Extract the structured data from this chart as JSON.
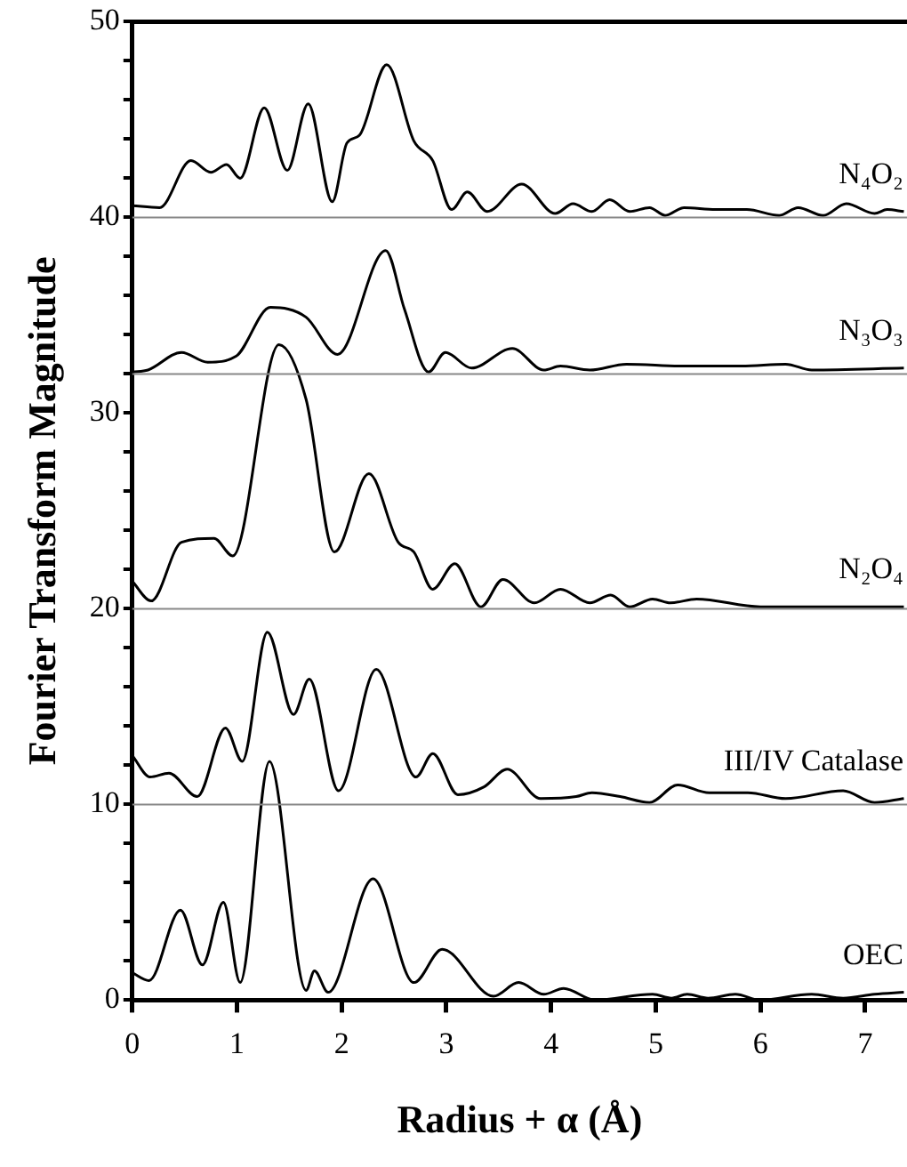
{
  "chart_data": {
    "type": "line",
    "xlabel": "Radius + α (Å)",
    "ylabel": "Fourier Transform Magnitude",
    "xlim": [
      0,
      7.4
    ],
    "xticks": [
      0,
      1,
      2,
      3,
      4,
      5,
      6,
      7
    ],
    "ylim": [
      0,
      50
    ],
    "yticks": [
      0,
      {
        "value": 2,
        "label": null
      },
      {
        "value": 4,
        "label": null
      },
      {
        "value": 6,
        "label": null
      },
      {
        "value": 8,
        "label": null
      },
      10,
      {
        "value": 12,
        "label": null
      },
      {
        "value": 14,
        "label": null
      },
      {
        "value": 16,
        "label": null
      },
      {
        "value": 18,
        "label": null
      },
      20,
      {
        "value": 22,
        "label": null
      },
      {
        "value": 24,
        "label": null
      },
      {
        "value": 26,
        "label": null
      },
      {
        "value": 28,
        "label": null
      },
      30,
      {
        "value": 32,
        "label": null
      },
      {
        "value": 34,
        "label": null
      },
      {
        "value": 36,
        "label": null
      },
      {
        "value": 38,
        "label": null
      },
      40,
      {
        "value": 42,
        "label": null
      },
      {
        "value": 44,
        "label": null
      },
      {
        "value": 46,
        "label": null
      },
      {
        "value": 48,
        "label": null
      },
      50
    ],
    "ref_lines": [
      {
        "axis": "y",
        "value": 40,
        "color": "#888888"
      },
      {
        "axis": "y",
        "value": 32,
        "color": "#888888"
      },
      {
        "axis": "y",
        "value": 20,
        "color": "#888888"
      },
      {
        "axis": "y",
        "value": 10,
        "color": "#888888"
      }
    ],
    "series": [
      {
        "name": "N₄O₂",
        "color": "#000000",
        "x": [
          0,
          0.26,
          0.56,
          0.75,
          0.9,
          1.03,
          1.26,
          1.48,
          1.68,
          1.91,
          2.05,
          2.17,
          2.43,
          2.69,
          2.87,
          3.05,
          3.2,
          3.39,
          3.72,
          4.04,
          4.21,
          4.39,
          4.56,
          4.75,
          4.94,
          5.09,
          5.27,
          5.57,
          5.87,
          6.18,
          6.36,
          6.6,
          6.82,
          7.09,
          7.21,
          7.37
        ],
        "values": [
          40.6,
          40.5,
          42.9,
          42.3,
          42.7,
          42.0,
          45.6,
          42.4,
          45.8,
          40.8,
          43.8,
          44.2,
          47.8,
          43.9,
          42.9,
          40.4,
          41.3,
          40.3,
          41.7,
          40.2,
          40.7,
          40.3,
          40.9,
          40.3,
          40.5,
          40.1,
          40.5,
          40.4,
          40.4,
          40.1,
          40.5,
          40.1,
          40.7,
          40.2,
          40.4,
          40.3
        ]
      },
      {
        "name": "N₃O₃",
        "color": "#000000",
        "x": [
          0,
          0.15,
          0.47,
          0.72,
          0.99,
          1.32,
          1.66,
          1.96,
          2.42,
          2.6,
          2.83,
          2.99,
          3.24,
          3.63,
          3.93,
          4.09,
          4.37,
          4.72,
          5.27,
          5.82,
          6.24,
          6.49,
          7.37
        ],
        "values": [
          32.1,
          32.2,
          33.1,
          32.6,
          32.9,
          35.4,
          34.9,
          33.0,
          38.3,
          35.3,
          32.1,
          33.1,
          32.3,
          33.3,
          32.2,
          32.4,
          32.2,
          32.5,
          32.4,
          32.4,
          32.5,
          32.2,
          32.3
        ]
      },
      {
        "name": "N₂O₄",
        "color": "#000000",
        "x": [
          0,
          0.18,
          0.47,
          0.78,
          0.96,
          1.4,
          1.66,
          1.93,
          2.26,
          2.54,
          2.69,
          2.87,
          3.08,
          3.33,
          3.54,
          3.84,
          4.09,
          4.37,
          4.57,
          4.75,
          4.97,
          5.14,
          5.39,
          6.0,
          7.37
        ],
        "values": [
          21.4,
          20.4,
          23.4,
          23.6,
          22.7,
          33.5,
          30.7,
          22.9,
          26.9,
          23.4,
          22.9,
          21.0,
          22.3,
          20.1,
          21.5,
          20.3,
          21.0,
          20.3,
          20.7,
          20.1,
          20.5,
          20.3,
          20.5,
          20.1,
          20.1
        ]
      },
      {
        "name": "III/IV Catalase",
        "color": "#000000",
        "x": [
          0,
          0.17,
          0.35,
          0.62,
          0.89,
          1.05,
          1.29,
          1.54,
          1.69,
          1.97,
          2.33,
          2.71,
          2.87,
          3.11,
          3.36,
          3.58,
          3.9,
          4.24,
          4.39,
          4.66,
          4.94,
          5.21,
          5.51,
          5.88,
          6.24,
          6.79,
          7.09,
          7.37
        ],
        "values": [
          12.5,
          11.4,
          11.6,
          10.4,
          13.9,
          12.2,
          18.8,
          14.6,
          16.4,
          10.7,
          16.9,
          11.4,
          12.6,
          10.5,
          10.9,
          11.8,
          10.3,
          10.4,
          10.6,
          10.4,
          10.1,
          11.0,
          10.6,
          10.6,
          10.3,
          10.7,
          10.1,
          10.3
        ]
      },
      {
        "name": "OEC",
        "color": "#000000",
        "x": [
          0,
          0.16,
          0.46,
          0.67,
          0.87,
          1.03,
          1.31,
          1.66,
          1.74,
          1.87,
          2.3,
          2.69,
          2.96,
          3.45,
          3.69,
          3.93,
          4.12,
          4.42,
          4.97,
          5.15,
          5.3,
          5.5,
          5.76,
          6.0,
          6.49,
          6.79,
          7.09,
          7.37
        ],
        "values": [
          1.4,
          1.0,
          4.6,
          1.8,
          5.0,
          0.9,
          12.2,
          0.5,
          1.5,
          0.4,
          6.2,
          0.9,
          2.6,
          0.2,
          0.9,
          0.3,
          0.6,
          0,
          0.3,
          0.1,
          0.3,
          0.1,
          0.3,
          0,
          0.3,
          0.1,
          0.3,
          0.4
        ]
      }
    ]
  }
}
